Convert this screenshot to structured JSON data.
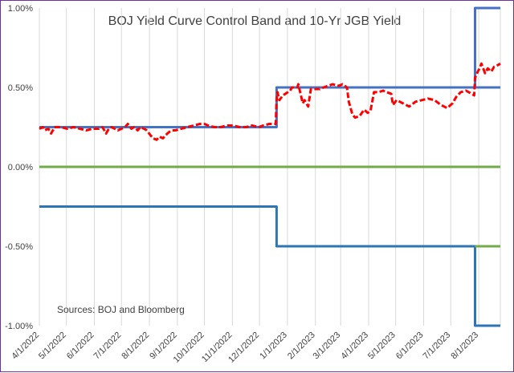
{
  "chart_data": {
    "type": "line",
    "title": "BOJ Yield Curve Control Band and 10-Yr JGB Yield",
    "annotation": "Sources: BOJ and Bloomberg",
    "xlabel": "",
    "ylabel": "",
    "x_ticks": [
      "4/1/2022",
      "5/1/2022",
      "6/1/2022",
      "7/1/2022",
      "8/1/2022",
      "9/1/2022",
      "10/1/2022",
      "11/1/2022",
      "12/1/2022",
      "1/1/2023",
      "2/1/2023",
      "3/1/2023",
      "4/1/2023",
      "5/1/2023",
      "6/1/2023",
      "7/1/2023",
      "8/1/2023"
    ],
    "x_range": [
      "2022-04-01",
      "2023-08-25"
    ],
    "y_ticks": [
      "1.00%",
      "0.50%",
      "0.00%",
      "-0.50%",
      "-1.00%"
    ],
    "ylim": [
      -1.0,
      1.0
    ],
    "grid": "vertical",
    "legend": "none",
    "series": [
      {
        "style": "solid",
        "color": "#4472c4",
        "points": [
          [
            "2022-04-01",
            0.25
          ],
          [
            "2022-12-20",
            0.25
          ],
          [
            "2022-12-20",
            0.5
          ],
          [
            "2023-07-28",
            0.5
          ],
          [
            "2023-07-28",
            1.0
          ],
          [
            "2023-08-25",
            1.0
          ]
        ]
      },
      {
        "style": "solid",
        "color": "#4472c4",
        "points": [
          [
            "2023-07-28",
            0.5
          ],
          [
            "2023-08-25",
            0.5
          ]
        ]
      },
      {
        "style": "solid",
        "color": "#2e75b6",
        "points": [
          [
            "2022-04-01",
            -0.25
          ],
          [
            "2022-12-20",
            -0.25
          ],
          [
            "2022-12-20",
            -0.5
          ],
          [
            "2023-07-28",
            -0.5
          ],
          [
            "2023-07-28",
            -1.0
          ],
          [
            "2023-08-25",
            -1.0
          ]
        ]
      },
      {
        "style": "solid",
        "color": "#70ad47",
        "points": [
          [
            "2022-04-01",
            0.0
          ],
          [
            "2023-08-25",
            0.0
          ]
        ]
      },
      {
        "style": "solid",
        "color": "#70ad47",
        "points": [
          [
            "2023-07-28",
            -0.5
          ],
          [
            "2023-08-25",
            -0.5
          ]
        ]
      },
      {
        "style": "dashed",
        "color": "#ff0000",
        "points": [
          [
            "2022-04-01",
            0.24
          ],
          [
            "2022-04-05",
            0.25
          ],
          [
            "2022-04-07",
            0.23
          ],
          [
            "2022-04-11",
            0.24
          ],
          [
            "2022-04-14",
            0.21
          ],
          [
            "2022-04-18",
            0.25
          ],
          [
            "2022-04-25",
            0.25
          ],
          [
            "2022-05-02",
            0.24
          ],
          [
            "2022-05-09",
            0.25
          ],
          [
            "2022-05-16",
            0.24
          ],
          [
            "2022-05-23",
            0.23
          ],
          [
            "2022-05-30",
            0.24
          ],
          [
            "2022-06-06",
            0.24
          ],
          [
            "2022-06-10",
            0.25
          ],
          [
            "2022-06-14",
            0.21
          ],
          [
            "2022-06-17",
            0.24
          ],
          [
            "2022-06-20",
            0.25
          ],
          [
            "2022-06-27",
            0.23
          ],
          [
            "2022-07-01",
            0.24
          ],
          [
            "2022-07-05",
            0.25
          ],
          [
            "2022-07-08",
            0.27
          ],
          [
            "2022-07-12",
            0.24
          ],
          [
            "2022-07-15",
            0.25
          ],
          [
            "2022-07-19",
            0.23
          ],
          [
            "2022-07-22",
            0.25
          ],
          [
            "2022-07-26",
            0.24
          ],
          [
            "2022-07-29",
            0.23
          ],
          [
            "2022-08-02",
            0.2
          ],
          [
            "2022-08-05",
            0.18
          ],
          [
            "2022-08-09",
            0.17
          ],
          [
            "2022-08-12",
            0.19
          ],
          [
            "2022-08-16",
            0.18
          ],
          [
            "2022-08-19",
            0.2
          ],
          [
            "2022-08-23",
            0.22
          ],
          [
            "2022-08-26",
            0.23
          ],
          [
            "2022-08-30",
            0.23
          ],
          [
            "2022-09-05",
            0.24
          ],
          [
            "2022-09-12",
            0.25
          ],
          [
            "2022-09-19",
            0.26
          ],
          [
            "2022-09-26",
            0.27
          ],
          [
            "2022-10-01",
            0.27
          ],
          [
            "2022-10-05",
            0.26
          ],
          [
            "2022-10-12",
            0.25
          ],
          [
            "2022-10-19",
            0.25
          ],
          [
            "2022-10-26",
            0.26
          ],
          [
            "2022-11-02",
            0.26
          ],
          [
            "2022-11-09",
            0.25
          ],
          [
            "2022-11-16",
            0.25
          ],
          [
            "2022-11-23",
            0.26
          ],
          [
            "2022-11-30",
            0.25
          ],
          [
            "2022-12-05",
            0.26
          ],
          [
            "2022-12-12",
            0.27
          ],
          [
            "2022-12-19",
            0.27
          ],
          [
            "2022-12-20",
            0.42
          ],
          [
            "2022-12-21",
            0.47
          ],
          [
            "2022-12-23",
            0.42
          ],
          [
            "2022-12-27",
            0.45
          ],
          [
            "2023-01-04",
            0.48
          ],
          [
            "2023-01-06",
            0.5
          ],
          [
            "2023-01-12",
            0.5
          ],
          [
            "2023-01-13",
            0.52
          ],
          [
            "2023-01-18",
            0.4
          ],
          [
            "2023-01-20",
            0.42
          ],
          [
            "2023-01-24",
            0.38
          ],
          [
            "2023-01-27",
            0.49
          ],
          [
            "2023-02-01",
            0.49
          ],
          [
            "2023-02-06",
            0.49
          ],
          [
            "2023-02-10",
            0.5
          ],
          [
            "2023-02-15",
            0.51
          ],
          [
            "2023-02-20",
            0.52
          ],
          [
            "2023-02-27",
            0.51
          ],
          [
            "2023-03-03",
            0.52
          ],
          [
            "2023-03-08",
            0.5
          ],
          [
            "2023-03-10",
            0.41
          ],
          [
            "2023-03-14",
            0.33
          ],
          [
            "2023-03-17",
            0.31
          ],
          [
            "2023-03-22",
            0.32
          ],
          [
            "2023-03-27",
            0.36
          ],
          [
            "2023-03-31",
            0.34
          ],
          [
            "2023-04-03",
            0.35
          ],
          [
            "2023-04-07",
            0.47
          ],
          [
            "2023-04-12",
            0.47
          ],
          [
            "2023-04-17",
            0.48
          ],
          [
            "2023-04-21",
            0.47
          ],
          [
            "2023-04-26",
            0.46
          ],
          [
            "2023-04-28",
            0.39
          ],
          [
            "2023-05-02",
            0.42
          ],
          [
            "2023-05-09",
            0.4
          ],
          [
            "2023-05-16",
            0.38
          ],
          [
            "2023-05-23",
            0.41
          ],
          [
            "2023-05-30",
            0.42
          ],
          [
            "2023-06-06",
            0.43
          ],
          [
            "2023-06-13",
            0.42
          ],
          [
            "2023-06-20",
            0.39
          ],
          [
            "2023-06-27",
            0.37
          ],
          [
            "2023-07-03",
            0.4
          ],
          [
            "2023-07-07",
            0.44
          ],
          [
            "2023-07-12",
            0.47
          ],
          [
            "2023-07-18",
            0.48
          ],
          [
            "2023-07-24",
            0.46
          ],
          [
            "2023-07-27",
            0.45
          ],
          [
            "2023-07-28",
            0.56
          ],
          [
            "2023-07-31",
            0.6
          ],
          [
            "2023-08-02",
            0.62
          ],
          [
            "2023-08-04",
            0.65
          ],
          [
            "2023-08-08",
            0.59
          ],
          [
            "2023-08-11",
            0.62
          ],
          [
            "2023-08-15",
            0.6
          ],
          [
            "2023-08-18",
            0.63
          ],
          [
            "2023-08-22",
            0.64
          ],
          [
            "2023-08-25",
            0.65
          ]
        ]
      }
    ]
  }
}
